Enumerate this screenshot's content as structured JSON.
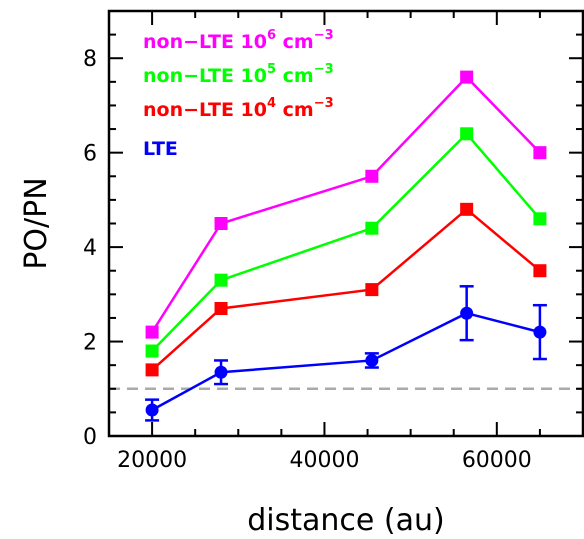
{
  "chart_data": {
    "type": "line",
    "xlabel": "distance (au)",
    "ylabel": "PO/PN",
    "xlim": [
      15000,
      70000
    ],
    "ylim": [
      0,
      9
    ],
    "x_ticks": [
      "20000",
      "40000",
      "60000"
    ],
    "y_ticks": [
      "0",
      "2",
      "4",
      "6",
      "8"
    ],
    "x_tick_values": [
      20000,
      40000,
      60000
    ],
    "y_tick_values": [
      0,
      2,
      4,
      6,
      8
    ],
    "x": [
      20000,
      28000,
      45500,
      56500,
      65000
    ],
    "reference_line": {
      "y": 1,
      "style": "dashed",
      "color": "#aaaaaa"
    },
    "legend_placement": "top-left",
    "series": [
      {
        "name": "non-LTE 10^6 cm^-3",
        "legend_base": "non−LTE 10",
        "legend_exp": "6",
        "legend_unit": " cm",
        "legend_unit_exp": "−3",
        "color": "#ff00ff",
        "marker": "square",
        "values": [
          2.2,
          4.5,
          5.5,
          7.6,
          6.0
        ]
      },
      {
        "name": "non-LTE 10^5 cm^-3",
        "legend_base": "non−LTE 10",
        "legend_exp": "5",
        "legend_unit": " cm",
        "legend_unit_exp": "−3",
        "color": "#00ff00",
        "marker": "square",
        "values": [
          1.8,
          3.3,
          4.4,
          6.4,
          4.6
        ]
      },
      {
        "name": "non-LTE 10^4 cm^-3",
        "legend_base": "non−LTE 10",
        "legend_exp": "4",
        "legend_unit": " cm",
        "legend_unit_exp": "−3",
        "color": "#ff0000",
        "marker": "square",
        "values": [
          1.4,
          2.7,
          3.1,
          4.8,
          3.5
        ]
      },
      {
        "name": "LTE",
        "legend_base": "LTE",
        "legend_exp": "",
        "legend_unit": "",
        "legend_unit_exp": "",
        "color": "#0000ff",
        "marker": "circle",
        "values": [
          0.55,
          1.35,
          1.6,
          2.6,
          2.2
        ],
        "errors": [
          0.22,
          0.25,
          0.15,
          0.57,
          0.57
        ]
      }
    ]
  }
}
